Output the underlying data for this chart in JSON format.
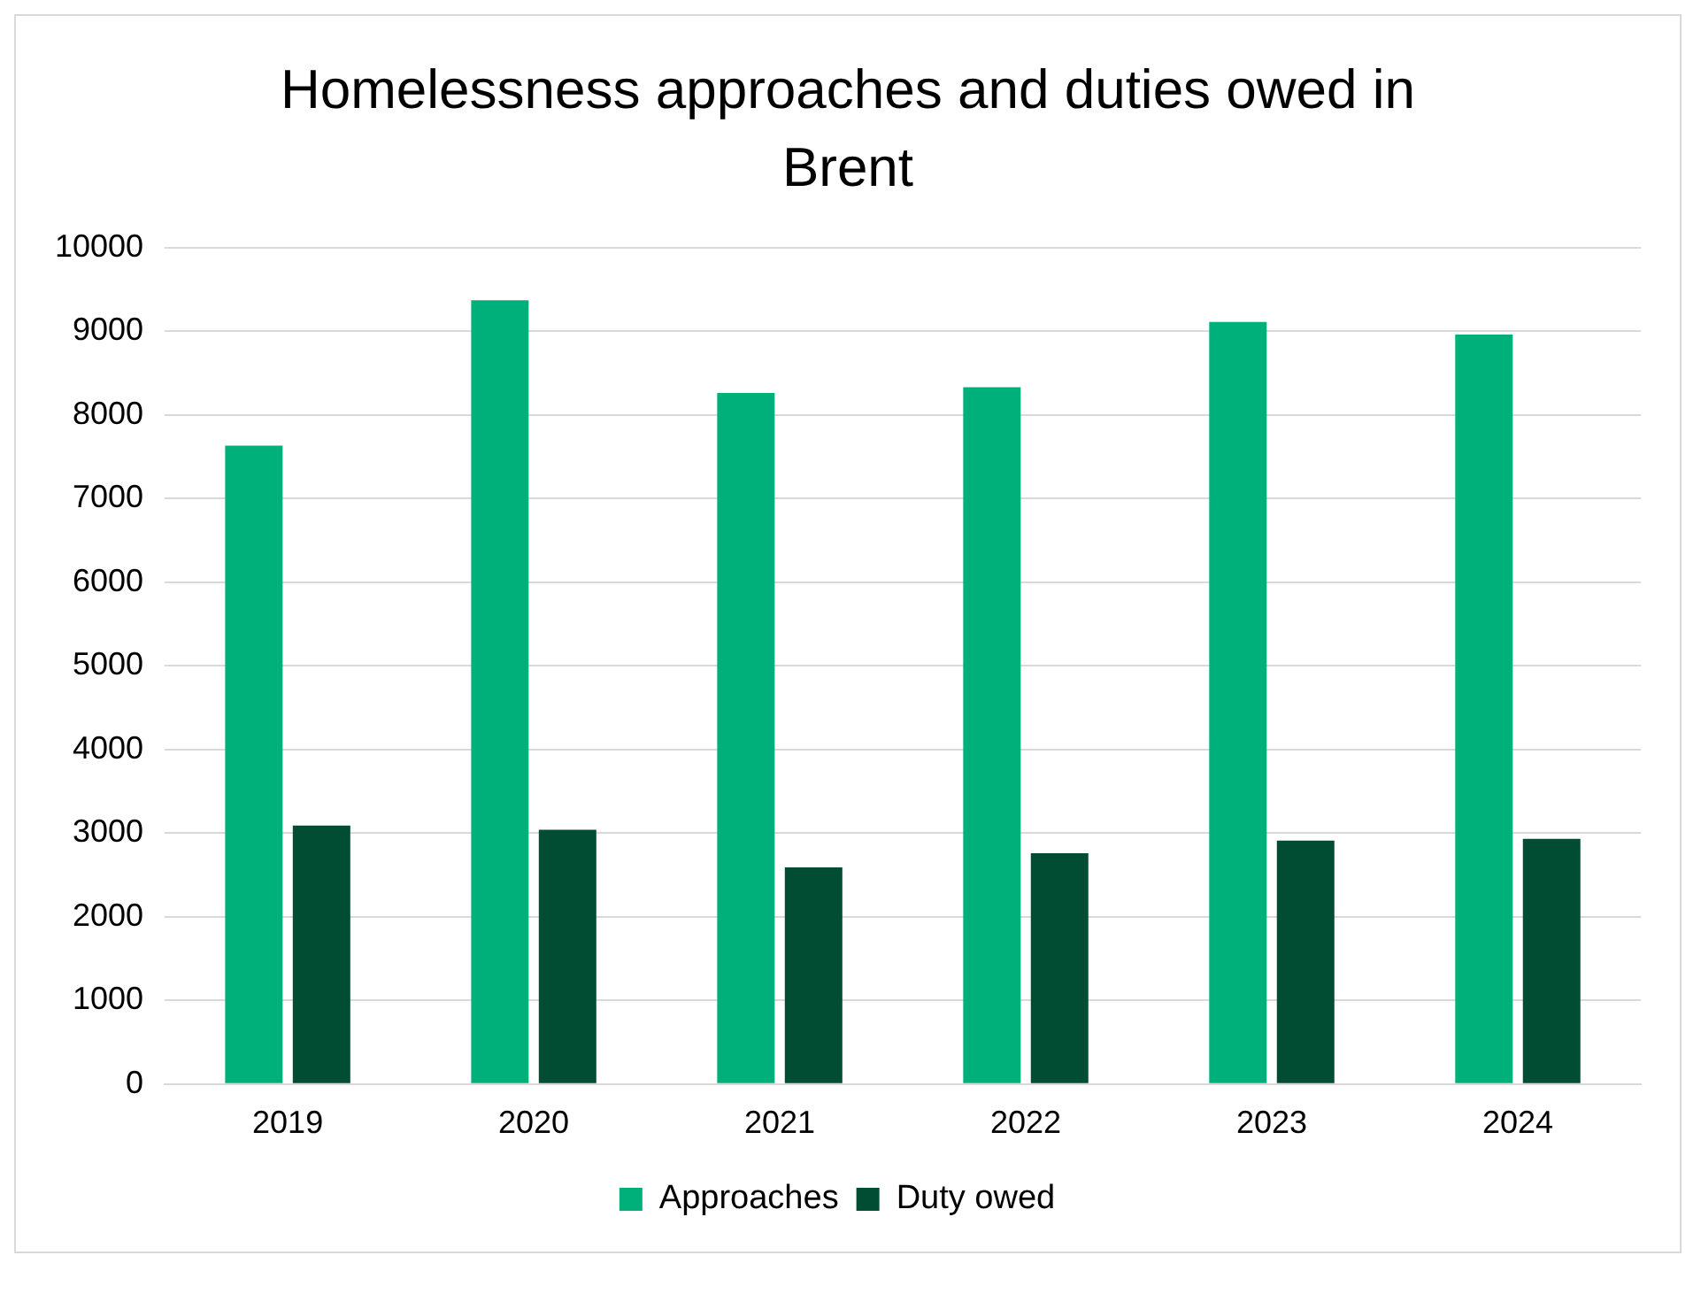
{
  "chart_data": {
    "type": "bar",
    "title": "Homelessness approaches and duties owed in Brent",
    "categories": [
      "2019",
      "2020",
      "2021",
      "2022",
      "2023",
      "2024"
    ],
    "series": [
      {
        "name": "Approaches",
        "color": "#00b07a",
        "values": [
          7630,
          9370,
          8260,
          8330,
          9110,
          8960
        ]
      },
      {
        "name": "Duty owed",
        "color": "#004d33",
        "values": [
          3090,
          3040,
          2590,
          2760,
          2910,
          2930
        ]
      }
    ],
    "ylim": [
      0,
      10000
    ],
    "yticks": [
      0,
      1000,
      2000,
      3000,
      4000,
      5000,
      6000,
      7000,
      8000,
      9000,
      10000
    ],
    "grid": "y",
    "legend": "bottom"
  }
}
